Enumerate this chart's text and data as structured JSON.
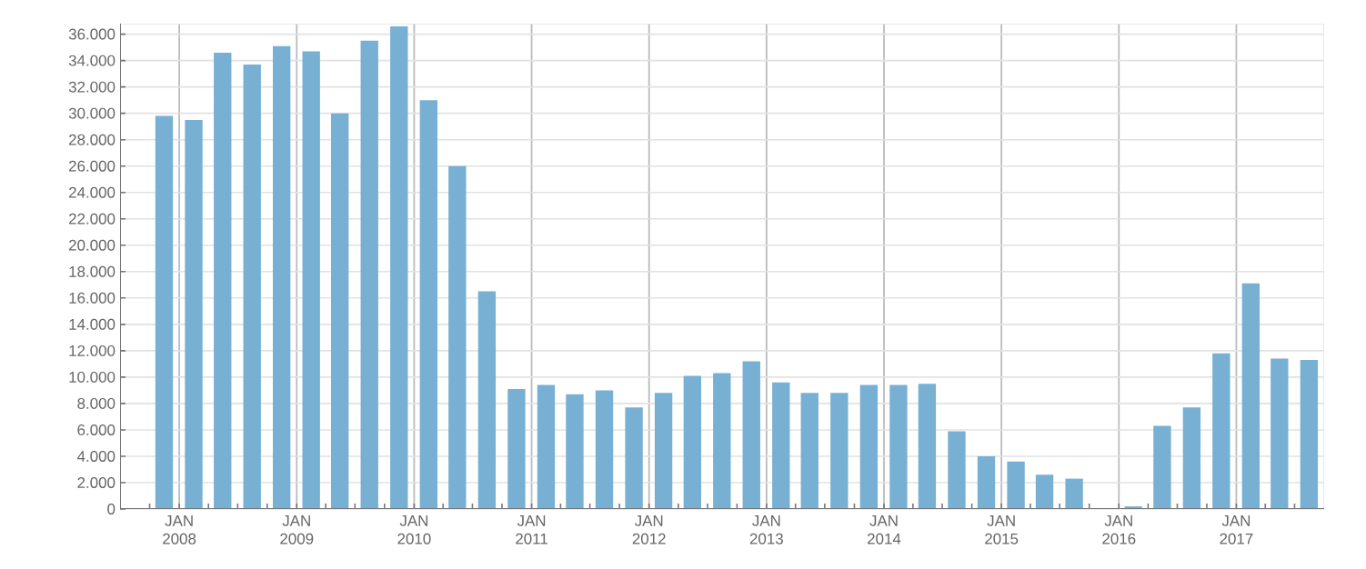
{
  "chart_data": {
    "type": "bar",
    "x": [
      "2007-11-15",
      "2008-02-15",
      "2008-05-15",
      "2008-08-15",
      "2008-11-15",
      "2009-02-15",
      "2009-05-15",
      "2009-08-15",
      "2009-11-15",
      "2010-02-15",
      "2010-05-15",
      "2010-08-15",
      "2010-11-15",
      "2011-02-15",
      "2011-05-15",
      "2011-08-15",
      "2011-11-15",
      "2012-02-15",
      "2012-05-15",
      "2012-08-15",
      "2012-11-15",
      "2013-02-15",
      "2013-05-15",
      "2013-08-15",
      "2013-11-15",
      "2014-02-15",
      "2014-05-15",
      "2014-08-15",
      "2014-11-15",
      "2015-02-15",
      "2015-05-15",
      "2015-08-15",
      "2015-11-15",
      "2016-02-15",
      "2016-05-15",
      "2016-08-15",
      "2016-11-15",
      "2017-02-15",
      "2017-05-15",
      "2017-08-15"
    ],
    "values": [
      29800,
      29500,
      34600,
      33700,
      35100,
      34700,
      30000,
      35500,
      36600,
      31000,
      26000,
      16500,
      9100,
      9400,
      8700,
      9000,
      7700,
      8800,
      10100,
      10300,
      11200,
      9600,
      8800,
      8800,
      9400,
      9400,
      9500,
      5900,
      4000,
      3600,
      2600,
      2300,
      null,
      200,
      6300,
      7700,
      11800,
      17100,
      11400,
      11300
    ],
    "color": "#77b0d3",
    "xlim": [
      "2007-07-01",
      "2017-10-01"
    ],
    "xticks": [
      {
        "value": "2007-10-01",
        "label": null
      },
      {
        "value": "2008-01-01",
        "label": "JAN 2008"
      },
      {
        "value": "2008-04-01",
        "label": null
      },
      {
        "value": "2008-07-01",
        "label": null
      },
      {
        "value": "2008-10-01",
        "label": null
      },
      {
        "value": "2009-01-01",
        "label": "JAN 2009"
      },
      {
        "value": "2009-04-01",
        "label": null
      },
      {
        "value": "2009-07-01",
        "label": null
      },
      {
        "value": "2009-10-01",
        "label": null
      },
      {
        "value": "2010-01-01",
        "label": "JAN 2010"
      },
      {
        "value": "2010-04-01",
        "label": null
      },
      {
        "value": "2010-07-01",
        "label": null
      },
      {
        "value": "2010-10-01",
        "label": null
      },
      {
        "value": "2011-01-01",
        "label": "JAN 2011"
      },
      {
        "value": "2011-04-01",
        "label": null
      },
      {
        "value": "2011-07-01",
        "label": null
      },
      {
        "value": "2011-10-01",
        "label": null
      },
      {
        "value": "2012-01-01",
        "label": "JAN 2012"
      },
      {
        "value": "2012-04-01",
        "label": null
      },
      {
        "value": "2012-07-01",
        "label": null
      },
      {
        "value": "2012-10-01",
        "label": null
      },
      {
        "value": "2013-01-01",
        "label": "JAN 2013"
      },
      {
        "value": "2013-04-01",
        "label": null
      },
      {
        "value": "2013-07-01",
        "label": null
      },
      {
        "value": "2013-10-01",
        "label": null
      },
      {
        "value": "2014-01-01",
        "label": "JAN 2014"
      },
      {
        "value": "2014-04-01",
        "label": null
      },
      {
        "value": "2014-07-01",
        "label": null
      },
      {
        "value": "2014-10-01",
        "label": null
      },
      {
        "value": "2015-01-01",
        "label": "JAN 2015"
      },
      {
        "value": "2015-04-01",
        "label": null
      },
      {
        "value": "2015-07-01",
        "label": null
      },
      {
        "value": "2015-10-01",
        "label": null
      },
      {
        "value": "2016-01-01",
        "label": "JAN 2016"
      },
      {
        "value": "2016-04-01",
        "label": null
      },
      {
        "value": "2016-07-01",
        "label": null
      },
      {
        "value": "2016-10-01",
        "label": null
      },
      {
        "value": "2017-01-01",
        "label": "JAN 2017"
      },
      {
        "value": "2017-04-01",
        "label": null
      },
      {
        "value": "2017-07-01",
        "label": null
      }
    ],
    "ylim": [
      0,
      36800
    ],
    "yticks": [
      0,
      {
        "value": 2000,
        "label": "2.000"
      },
      {
        "value": 4000,
        "label": "4.000"
      },
      {
        "value": 6000,
        "label": "6.000"
      },
      {
        "value": 8000,
        "label": "8.000"
      },
      {
        "value": 10000,
        "label": "10.000"
      },
      {
        "value": 12000,
        "label": "12.000"
      },
      {
        "value": 14000,
        "label": "14.000"
      },
      {
        "value": 16000,
        "label": "16.000"
      },
      {
        "value": 18000,
        "label": "18.000"
      },
      {
        "value": 20000,
        "label": "20.000"
      },
      {
        "value": 22000,
        "label": "22.000"
      },
      {
        "value": 24000,
        "label": "24.000"
      },
      {
        "value": 26000,
        "label": "26.000"
      },
      {
        "value": 28000,
        "label": "28.000"
      },
      {
        "value": 30000,
        "label": "30.000"
      },
      {
        "value": 32000,
        "label": "32.000"
      },
      {
        "value": 34000,
        "label": "34.000"
      },
      {
        "value": 36000,
        "label": "36.000"
      }
    ],
    "grid": true
  }
}
